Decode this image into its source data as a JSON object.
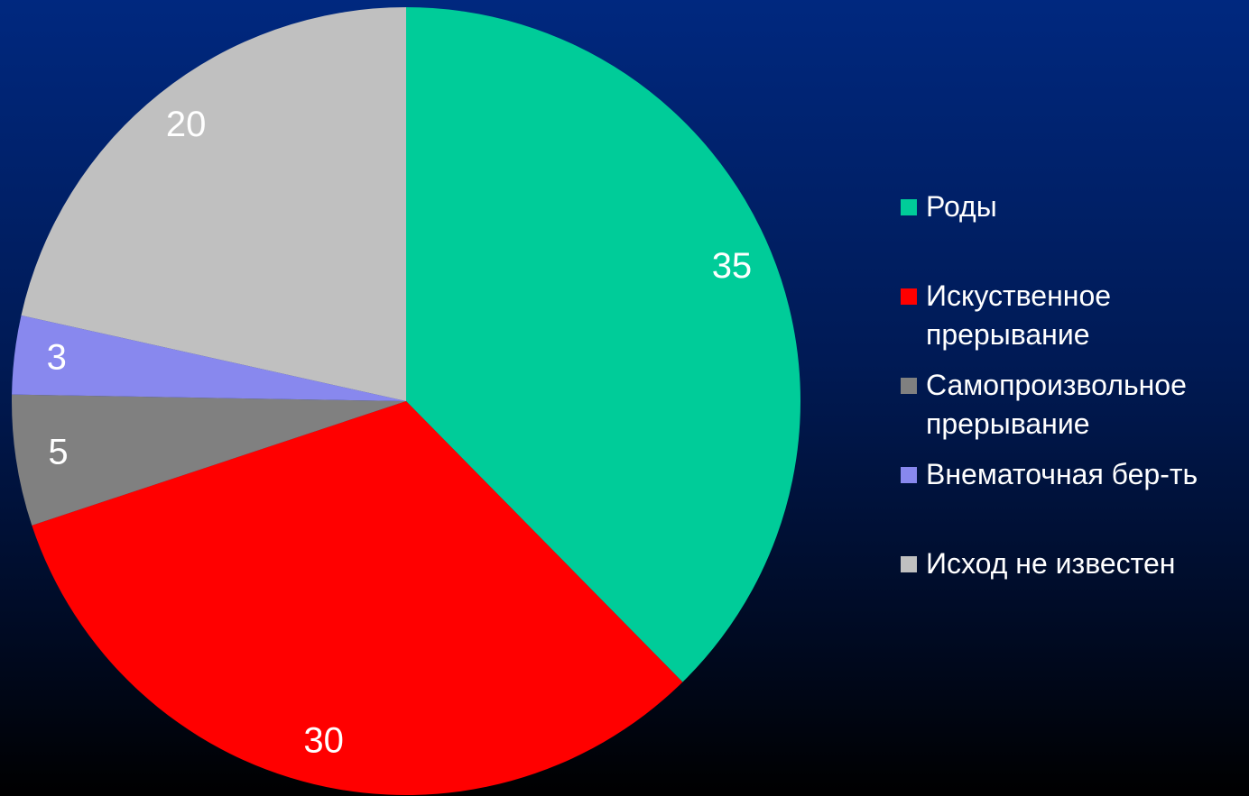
{
  "chart_data": {
    "type": "pie",
    "categories": [
      "Роды",
      "Искуственное прерывание",
      "Самопроизвольное прерывание",
      "Внематочная бер-ть",
      "Исход не известен"
    ],
    "values": [
      35,
      30,
      5,
      3,
      20
    ],
    "colors": [
      "#00cc99",
      "#ff0000",
      "#808080",
      "#8888ee",
      "#c0c0c0"
    ],
    "legend": "right"
  }
}
